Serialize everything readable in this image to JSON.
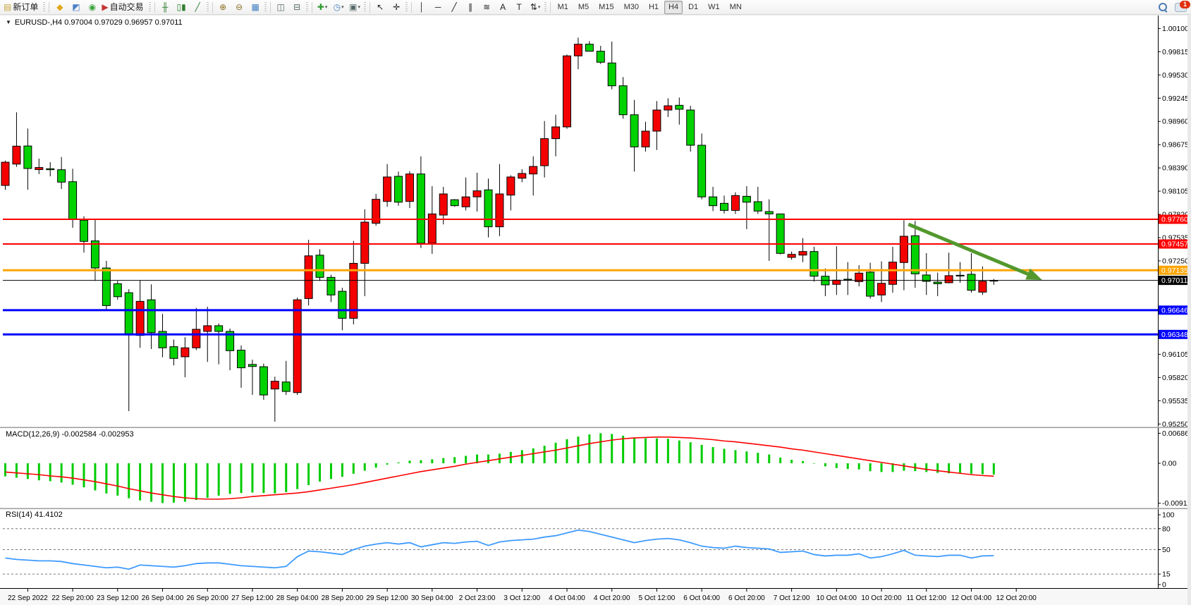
{
  "toolbar": {
    "groups": [
      [
        {
          "name": "new-order-button",
          "glyph": "▤",
          "color": "#caa53d",
          "label": "新订单",
          "interactable": true
        }
      ],
      [
        {
          "name": "wedge-icon",
          "glyph": "◆",
          "color": "#e0a818",
          "interactable": true
        },
        {
          "name": "community-icon",
          "glyph": "◩",
          "color": "#4a80c8",
          "interactable": true
        },
        {
          "name": "signal-icon",
          "glyph": "◉",
          "color": "#3aa33a",
          "interactable": true
        },
        {
          "name": "autotrade-button",
          "glyph": "▶",
          "color": "#c83232",
          "label": "自动交易",
          "interactable": true
        }
      ],
      [
        {
          "name": "bar-chart-icon",
          "glyph": "╫",
          "color": "#2f7d2f",
          "interactable": true
        },
        {
          "name": "candlestick-chart-icon",
          "glyph": "▯▮",
          "color": "#2f7d2f",
          "interactable": true
        },
        {
          "name": "line-chart-icon",
          "glyph": "╱",
          "color": "#2f7d2f",
          "interactable": true
        }
      ],
      [
        {
          "name": "zoom-in-icon",
          "glyph": "⊕",
          "color": "#8a6d1f",
          "interactable": true
        },
        {
          "name": "zoom-out-icon",
          "glyph": "⊖",
          "color": "#8a6d1f",
          "interactable": true
        },
        {
          "name": "tile-windows-icon",
          "glyph": "▦",
          "color": "#3f7ec0",
          "interactable": true
        }
      ],
      [
        {
          "name": "arrange-windows-icon",
          "glyph": "◫",
          "color": "#556666",
          "interactable": true
        },
        {
          "name": "dock-windows-icon",
          "glyph": "⊟",
          "color": "#556666",
          "interactable": true
        }
      ],
      [
        {
          "name": "new-chart-icon",
          "glyph": "✚",
          "color": "#2f9d2f",
          "dropdown": true,
          "interactable": true
        },
        {
          "name": "profiles-clock-icon",
          "glyph": "◷",
          "color": "#3f7ec0",
          "dropdown": true,
          "interactable": true
        },
        {
          "name": "templates-icon",
          "glyph": "▣",
          "color": "#556666",
          "dropdown": true,
          "interactable": true
        }
      ],
      [
        {
          "name": "cursor-icon",
          "glyph": "↖",
          "color": "#222222",
          "interactable": true
        },
        {
          "name": "crosshair-icon",
          "glyph": "✛",
          "color": "#222222",
          "interactable": true
        }
      ],
      [
        {
          "name": "vertical-line-icon",
          "glyph": "│",
          "color": "#222222",
          "interactable": true
        },
        {
          "name": "horizontal-line-icon",
          "glyph": "─",
          "color": "#222222",
          "interactable": true
        },
        {
          "name": "trendline-icon",
          "glyph": "╱",
          "color": "#222222",
          "interactable": true
        },
        {
          "name": "channel-icon",
          "glyph": "∥",
          "color": "#222222",
          "interactable": true
        },
        {
          "name": "fibonacci-icon",
          "glyph": "≋",
          "color": "#222222",
          "interactable": true
        },
        {
          "name": "text-icon",
          "glyph": "A",
          "color": "#222222",
          "interactable": true
        },
        {
          "name": "text-label-icon",
          "glyph": "T",
          "color": "#222222",
          "interactable": true
        },
        {
          "name": "shapes-icon",
          "glyph": "⇅",
          "color": "#222222",
          "dropdown": true,
          "interactable": true
        }
      ]
    ],
    "timeframes": {
      "items": [
        "M1",
        "M5",
        "M15",
        "M30",
        "H1",
        "H4",
        "D1",
        "W1",
        "MN"
      ],
      "active": "H4"
    },
    "notification_badge": "1"
  },
  "chart": {
    "dropdown_glyph": "▼",
    "symbol_line": "EURUSD-,H4  0.97004 0.97029 0.96957 0.97011",
    "macd_label": "MACD(12,26,9) -0.002584 -0.002953",
    "rsi_label": "RSI(14) 41.4102"
  },
  "chart_data": {
    "type": "candlestick",
    "symbol": "EURUSD-",
    "timeframe": "H4",
    "current_bar": {
      "open": 0.97004,
      "high": 0.97029,
      "low": 0.96957,
      "close": 0.97011
    },
    "up_color": "#F40000",
    "down_color": "#00D200",
    "wick_color": "#000000",
    "ylim": [
      0.95218,
      1.00233
    ],
    "grid": false,
    "candles": [
      [
        0.98175,
        0.9848,
        0.9812,
        0.9846
      ],
      [
        0.98437,
        0.99072,
        0.98403,
        0.98657
      ],
      [
        0.98659,
        0.98873,
        0.98123,
        0.98383
      ],
      [
        0.9837,
        0.98504,
        0.98314,
        0.98395
      ],
      [
        0.9838,
        0.9846,
        0.98287,
        0.98368
      ],
      [
        0.98368,
        0.98524,
        0.98132,
        0.98216
      ],
      [
        0.98221,
        0.9838,
        0.97656,
        0.9776
      ],
      [
        0.97749,
        0.97797,
        0.97351,
        0.97489
      ],
      [
        0.97495,
        0.97754,
        0.97006,
        0.97163
      ],
      [
        0.97163,
        0.9725,
        0.96646,
        0.96702
      ],
      [
        0.9697,
        0.97005,
        0.96774,
        0.96811
      ],
      [
        0.9686,
        0.96903,
        0.95408,
        0.96341
      ],
      [
        0.96336,
        0.97008,
        0.96184,
        0.96754
      ],
      [
        0.96773,
        0.96962,
        0.96169,
        0.9637
      ],
      [
        0.96385,
        0.966,
        0.96068,
        0.96184
      ],
      [
        0.96198,
        0.96285,
        0.95968,
        0.96054
      ],
      [
        0.96074,
        0.96314,
        0.95823,
        0.96184
      ],
      [
        0.96184,
        0.96673,
        0.96155,
        0.96411
      ],
      [
        0.96385,
        0.96688,
        0.96011,
        0.96455
      ],
      [
        0.96455,
        0.96483,
        0.95982,
        0.96385
      ],
      [
        0.96385,
        0.9642,
        0.95909,
        0.96149
      ],
      [
        0.96155,
        0.96213,
        0.95694,
        0.95939
      ],
      [
        0.9598,
        0.96039,
        0.95606,
        0.95955
      ],
      [
        0.95952,
        0.9599,
        0.95547,
        0.95606
      ],
      [
        0.95679,
        0.9583,
        0.95278,
        0.95774
      ],
      [
        0.95765,
        0.96024,
        0.95606,
        0.95649
      ],
      [
        0.95635,
        0.968,
        0.95606,
        0.96773
      ],
      [
        0.96788,
        0.97509,
        0.96704,
        0.97312
      ],
      [
        0.9732,
        0.97393,
        0.97005,
        0.97048
      ],
      [
        0.97048,
        0.9708,
        0.96745,
        0.96832
      ],
      [
        0.96877,
        0.9692,
        0.96399,
        0.96546
      ],
      [
        0.96546,
        0.97495,
        0.96471,
        0.9722
      ],
      [
        0.9722,
        0.97883,
        0.96817,
        0.97725
      ],
      [
        0.97711,
        0.98071,
        0.97682,
        0.98005
      ],
      [
        0.97979,
        0.98437,
        0.97913,
        0.98279
      ],
      [
        0.98287,
        0.98345,
        0.97927,
        0.9797
      ],
      [
        0.97979,
        0.98351,
        0.97898,
        0.98316
      ],
      [
        0.98316,
        0.98532,
        0.97408,
        0.97466
      ],
      [
        0.97466,
        0.98166,
        0.97336,
        0.97826
      ],
      [
        0.97812,
        0.98158,
        0.97697,
        0.98071
      ],
      [
        0.98,
        0.98008,
        0.97913,
        0.97927
      ],
      [
        0.97913,
        0.98273,
        0.97869,
        0.98035
      ],
      [
        0.98035,
        0.98331,
        0.97855,
        0.98109
      ],
      [
        0.98121,
        0.98259,
        0.97538,
        0.97668
      ],
      [
        0.97668,
        0.98437,
        0.97553,
        0.98071
      ],
      [
        0.98057,
        0.983,
        0.97869,
        0.98279
      ],
      [
        0.98264,
        0.98374,
        0.98215,
        0.98322
      ],
      [
        0.98316,
        0.98532,
        0.98051,
        0.98408
      ],
      [
        0.98417,
        0.98965,
        0.98273,
        0.98749
      ],
      [
        0.98749,
        0.99042,
        0.98532,
        0.98893
      ],
      [
        0.98893,
        0.9978,
        0.9887,
        0.99764
      ],
      [
        0.99764,
        0.99988,
        0.996,
        0.99907
      ],
      [
        0.99907,
        0.99945,
        0.99816,
        0.99821
      ],
      [
        0.99821,
        0.99887,
        0.99665,
        0.99686
      ],
      [
        0.99677,
        0.99939,
        0.99354,
        0.99397
      ],
      [
        0.99397,
        0.99504,
        0.98994,
        0.99042
      ],
      [
        0.99042,
        0.99224,
        0.98345,
        0.98648
      ],
      [
        0.98648,
        0.98956,
        0.9859,
        0.98841
      ],
      [
        0.98841,
        0.9921,
        0.9861,
        0.991
      ],
      [
        0.991,
        0.99244,
        0.99014,
        0.99152
      ],
      [
        0.99158,
        0.99253,
        0.98921,
        0.99109
      ],
      [
        0.991,
        0.99152,
        0.9859,
        0.98668
      ],
      [
        0.98668,
        0.98812,
        0.98005,
        0.98035
      ],
      [
        0.98035,
        0.98158,
        0.97861,
        0.97927
      ],
      [
        0.97956,
        0.98051,
        0.97832,
        0.97869
      ],
      [
        0.97869,
        0.98091,
        0.97826,
        0.98051
      ],
      [
        0.98042,
        0.98166,
        0.97639,
        0.9797
      ],
      [
        0.97976,
        0.98158,
        0.97826,
        0.97861
      ],
      [
        0.97855,
        0.98005,
        0.9725,
        0.97826
      ],
      [
        0.97826,
        0.9783,
        0.9733,
        0.97342
      ],
      [
        0.97293,
        0.97365,
        0.97264,
        0.9733
      ],
      [
        0.97321,
        0.97529,
        0.97235,
        0.97365
      ],
      [
        0.97365,
        0.97423,
        0.96996,
        0.97062
      ],
      [
        0.97062,
        0.97157,
        0.96817,
        0.96956
      ],
      [
        0.96962,
        0.97429,
        0.96832,
        0.97014
      ],
      [
        0.97025,
        0.97235,
        0.96832,
        0.97015
      ],
      [
        0.96996,
        0.97198,
        0.96938,
        0.971
      ],
      [
        0.97112,
        0.97227,
        0.96788,
        0.96817
      ],
      [
        0.96832,
        0.97244,
        0.96745,
        0.96975
      ],
      [
        0.96962,
        0.97423,
        0.96861,
        0.97235
      ],
      [
        0.9723,
        0.97749,
        0.9689,
        0.97552
      ],
      [
        0.97558,
        0.9774,
        0.96919,
        0.97091
      ],
      [
        0.97077,
        0.97345,
        0.96832,
        0.96999
      ],
      [
        0.9699,
        0.97106,
        0.96817,
        0.9697
      ],
      [
        0.96982,
        0.97351,
        0.96975,
        0.97069
      ],
      [
        0.97074,
        0.97235,
        0.96982,
        0.97064
      ],
      [
        0.97086,
        0.97345,
        0.96861,
        0.9689
      ],
      [
        0.96867,
        0.97183,
        0.96832,
        0.97
      ],
      [
        0.97004,
        0.97029,
        0.96957,
        0.97011
      ]
    ],
    "hlines": [
      {
        "price": 0.9776,
        "color": "#FF0000",
        "label": "0.97760",
        "width": 2
      },
      {
        "price": 0.97457,
        "color": "#FF0000",
        "label": "0.97457",
        "width": 2
      },
      {
        "price": 0.97135,
        "color": "#FFA500",
        "label": "0.97135",
        "width": 3
      },
      {
        "price": 0.97011,
        "color": "#000000",
        "label": "0.97011",
        "width": 1,
        "current": true
      },
      {
        "price": 0.96646,
        "color": "#0000FF",
        "label": "0.96646",
        "width": 3
      },
      {
        "price": 0.96348,
        "color": "#0000FF",
        "label": "0.96348",
        "width": 3
      }
    ],
    "trend_arrow": {
      "from_bar": 80.4,
      "from_price": 0.97699,
      "to_bar": 92.3,
      "to_price": 0.97016,
      "color": "#52982D"
    },
    "price_axis": {
      "labels": [
        "1.00100",
        "0.99815",
        "0.99530",
        "0.99245",
        "0.98960",
        "0.98675",
        "0.98390",
        "0.98105",
        "0.97820",
        "0.97535",
        "0.97250",
        "0.96105",
        "0.95820",
        "0.95535",
        "0.95250"
      ]
    },
    "time_axis": {
      "labels": [
        "22 Sep 2022",
        "22 Sep 20:00",
        "23 Sep 12:00",
        "26 Sep 04:00",
        "26 Sep 20:00",
        "27 Sep 12:00",
        "28 Sep 04:00",
        "28 Sep 20:00",
        "29 Sep 12:00",
        "30 Sep 04:00",
        "2 Oct 23:00",
        "3 Oct 12:00",
        "4 Oct 04:00",
        "4 Oct 20:00",
        "5 Oct 12:00",
        "6 Oct 04:00",
        "6 Oct 20:00",
        "7 Oct 12:00",
        "10 Oct 04:00",
        "10 Oct 20:00",
        "11 Oct 12:00",
        "12 Oct 04:00",
        "12 Oct 20:00"
      ],
      "first_label_bar": 2,
      "bars_per_label": 4
    },
    "macd": {
      "params": "12,26,9",
      "macd_value": -0.002584,
      "signal_value": -0.002953,
      "hist_color": "#00CC00",
      "signal_color": "#FF0000",
      "axis_labels": [
        "0.006868",
        "0.00",
        "-0.009114"
      ],
      "axis_values": [
        0.006868,
        0.0,
        -0.009114
      ],
      "histogram": [
        -0.003,
        -0.0033,
        -0.0036,
        -0.0039,
        -0.0041,
        -0.0044,
        -0.0049,
        -0.0055,
        -0.0062,
        -0.0069,
        -0.0074,
        -0.008,
        -0.0085,
        -0.0088,
        -0.0091,
        -0.009,
        -0.0088,
        -0.0084,
        -0.0079,
        -0.0074,
        -0.007,
        -0.0068,
        -0.0067,
        -0.0068,
        -0.0069,
        -0.0066,
        -0.0059,
        -0.005,
        -0.0042,
        -0.0036,
        -0.0031,
        -0.0024,
        -0.0017,
        -0.001,
        -0.0003,
        0.0002,
        0.0006,
        0.0007,
        0.0009,
        0.0012,
        0.0014,
        0.0017,
        0.002,
        0.002,
        0.0022,
        0.0026,
        0.003,
        0.0034,
        0.004,
        0.0047,
        0.0055,
        0.0061,
        0.0066,
        0.00687,
        0.0067,
        0.0063,
        0.0059,
        0.0057,
        0.0057,
        0.0056,
        0.0052,
        0.0048,
        0.0042,
        0.0037,
        0.0033,
        0.003,
        0.0027,
        0.0024,
        0.002,
        0.0013,
        0.0008,
        0.0005,
        -0.0001,
        -0.0007,
        -0.0011,
        -0.0013,
        -0.0014,
        -0.0018,
        -0.002,
        -0.002,
        -0.0017,
        -0.0018,
        -0.002,
        -0.0022,
        -0.0023,
        -0.0023,
        -0.0024,
        -0.0025,
        -0.002584
      ],
      "signal": [
        -0.002,
        -0.0022,
        -0.0024,
        -0.0026,
        -0.0029,
        -0.0031,
        -0.0034,
        -0.0038,
        -0.0042,
        -0.0047,
        -0.0052,
        -0.0058,
        -0.0063,
        -0.0068,
        -0.0072,
        -0.0076,
        -0.0079,
        -0.0081,
        -0.0082,
        -0.0082,
        -0.0081,
        -0.0079,
        -0.0076,
        -0.0074,
        -0.0072,
        -0.007,
        -0.0068,
        -0.0065,
        -0.0061,
        -0.0057,
        -0.0053,
        -0.0049,
        -0.0044,
        -0.0039,
        -0.0034,
        -0.0029,
        -0.0024,
        -0.0019,
        -0.0015,
        -0.0011,
        -0.0007,
        -0.0002,
        0.0002,
        0.0006,
        0.001,
        0.0014,
        0.0018,
        0.0022,
        0.0026,
        0.003,
        0.0035,
        0.004,
        0.0045,
        0.0049,
        0.0053,
        0.0056,
        0.0058,
        0.0059,
        0.006,
        0.006,
        0.0059,
        0.0058,
        0.0056,
        0.0054,
        0.0051,
        0.0049,
        0.0046,
        0.0043,
        0.004,
        0.0037,
        0.0033,
        0.003,
        0.0026,
        0.0022,
        0.0018,
        0.0014,
        0.001,
        0.0006,
        0.0002,
        -0.0002,
        -0.0006,
        -0.001,
        -0.0014,
        -0.0017,
        -0.002,
        -0.0023,
        -0.0026,
        -0.0028,
        -0.002953
      ]
    },
    "rsi": {
      "period": 14,
      "value": 41.4102,
      "color": "#3E9BFF",
      "levels": [
        80,
        50,
        15
      ],
      "axis_labels": [
        "100",
        "80",
        "50",
        "15",
        "0"
      ],
      "axis_values": [
        100,
        80,
        50,
        15,
        0
      ],
      "series": [
        38,
        36,
        35,
        34,
        34,
        33,
        30,
        28,
        26,
        24,
        25,
        22,
        28,
        27,
        26,
        25,
        27,
        30,
        31,
        31,
        29,
        27,
        26,
        25,
        24,
        26,
        40,
        48,
        47,
        45,
        43,
        50,
        55,
        58,
        60,
        58,
        60,
        54,
        57,
        60,
        59,
        61,
        62,
        56,
        61,
        63,
        64,
        65,
        68,
        70,
        74,
        78,
        76,
        72,
        68,
        64,
        60,
        63,
        65,
        66,
        64,
        60,
        55,
        53,
        52,
        55,
        53,
        52,
        51,
        46,
        47,
        48,
        43,
        41,
        42,
        42,
        44,
        38,
        40,
        44,
        49,
        42,
        41,
        40,
        42,
        42,
        38,
        41,
        41.41
      ]
    }
  }
}
